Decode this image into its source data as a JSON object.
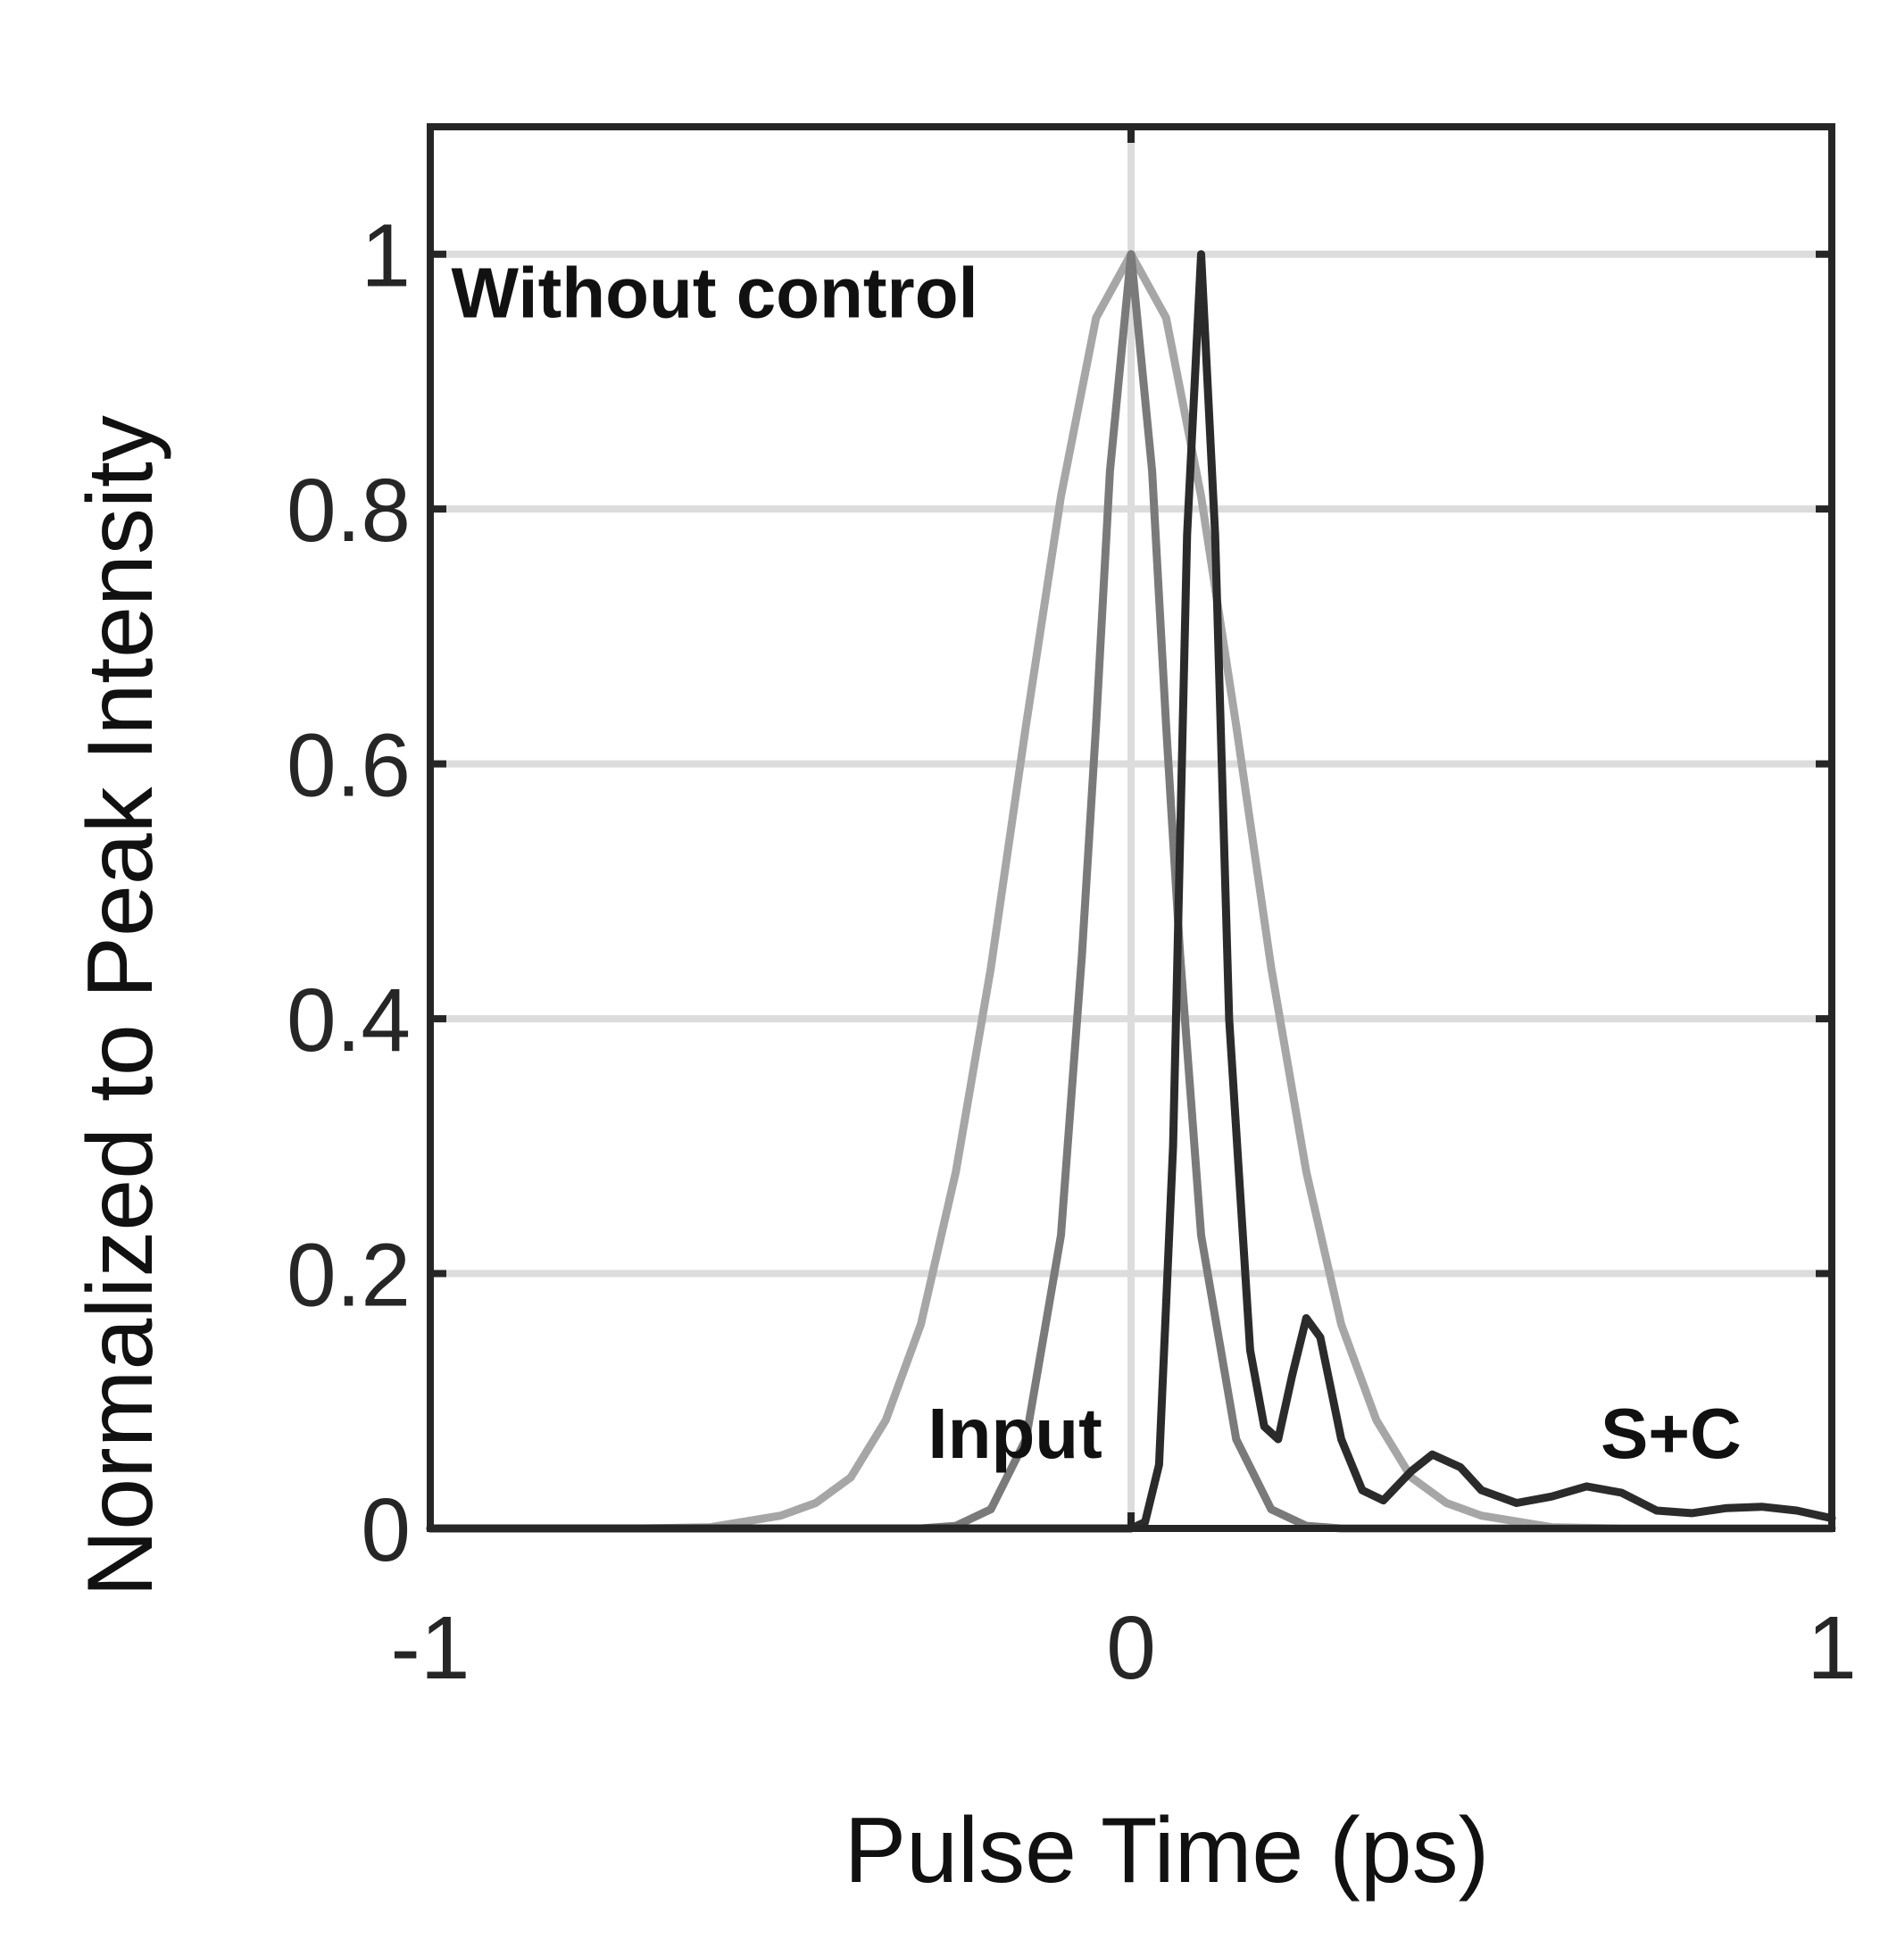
{
  "chart_data": {
    "type": "line",
    "title": "",
    "xlabel": "Pulse Time (ps)",
    "ylabel": "Normalized to Peak Intensity",
    "xlim": [
      -1,
      1
    ],
    "ylim": [
      0,
      1.1
    ],
    "grid": true,
    "xticks": [
      -1,
      0,
      1
    ],
    "xtick_labels": [
      "-1",
      "0",
      "1"
    ],
    "yticks": [
      0,
      0.2,
      0.4,
      0.6,
      0.8,
      1
    ],
    "ytick_labels": [
      "0",
      "0.2",
      "0.4",
      "0.6",
      "0.8",
      "1"
    ],
    "series": [
      {
        "name": "Without control",
        "color": "#a6a6a6",
        "points": [
          [
            -1,
            0
          ],
          [
            -0.7,
            0.0
          ],
          [
            -0.6,
            0.001
          ],
          [
            -0.5,
            0.01
          ],
          [
            -0.45,
            0.02
          ],
          [
            -0.4,
            0.04
          ],
          [
            -0.35,
            0.085
          ],
          [
            -0.3,
            0.16
          ],
          [
            -0.25,
            0.28
          ],
          [
            -0.2,
            0.44
          ],
          [
            -0.15,
            0.63
          ],
          [
            -0.1,
            0.81
          ],
          [
            -0.05,
            0.95
          ],
          [
            0,
            1.0
          ],
          [
            0.05,
            0.95
          ],
          [
            0.1,
            0.81
          ],
          [
            0.15,
            0.63
          ],
          [
            0.2,
            0.44
          ],
          [
            0.25,
            0.28
          ],
          [
            0.3,
            0.16
          ],
          [
            0.35,
            0.085
          ],
          [
            0.4,
            0.04
          ],
          [
            0.45,
            0.02
          ],
          [
            0.5,
            0.01
          ],
          [
            0.6,
            0.001
          ],
          [
            0.7,
            0.0
          ],
          [
            1,
            0
          ]
        ]
      },
      {
        "name": "Input",
        "color": "#7a7a7a",
        "points": [
          [
            -1,
            0
          ],
          [
            -0.3,
            0.0
          ],
          [
            -0.25,
            0.002
          ],
          [
            -0.2,
            0.015
          ],
          [
            -0.15,
            0.07
          ],
          [
            -0.1,
            0.23
          ],
          [
            -0.07,
            0.45
          ],
          [
            -0.05,
            0.63
          ],
          [
            -0.03,
            0.83
          ],
          [
            0,
            1.0
          ],
          [
            0.03,
            0.83
          ],
          [
            0.05,
            0.63
          ],
          [
            0.07,
            0.45
          ],
          [
            0.1,
            0.23
          ],
          [
            0.15,
            0.07
          ],
          [
            0.2,
            0.015
          ],
          [
            0.25,
            0.002
          ],
          [
            0.3,
            0.0
          ],
          [
            1,
            0
          ]
        ]
      },
      {
        "name": "S+C",
        "color": "#2b2b2b",
        "points": [
          [
            -1,
            0
          ],
          [
            0,
            0
          ],
          [
            0.02,
            0.005
          ],
          [
            0.04,
            0.05
          ],
          [
            0.06,
            0.3
          ],
          [
            0.08,
            0.78
          ],
          [
            0.1,
            1.0
          ],
          [
            0.12,
            0.78
          ],
          [
            0.14,
            0.4
          ],
          [
            0.17,
            0.14
          ],
          [
            0.19,
            0.08
          ],
          [
            0.21,
            0.07
          ],
          [
            0.23,
            0.12
          ],
          [
            0.25,
            0.165
          ],
          [
            0.27,
            0.15
          ],
          [
            0.3,
            0.07
          ],
          [
            0.33,
            0.03
          ],
          [
            0.36,
            0.022
          ],
          [
            0.4,
            0.045
          ],
          [
            0.43,
            0.058
          ],
          [
            0.47,
            0.048
          ],
          [
            0.5,
            0.03
          ],
          [
            0.55,
            0.02
          ],
          [
            0.6,
            0.025
          ],
          [
            0.65,
            0.033
          ],
          [
            0.7,
            0.028
          ],
          [
            0.75,
            0.014
          ],
          [
            0.8,
            0.012
          ],
          [
            0.85,
            0.016
          ],
          [
            0.9,
            0.017
          ],
          [
            0.95,
            0.014
          ],
          [
            1,
            0.008
          ]
        ]
      }
    ],
    "annotations": [
      {
        "text": "Without control",
        "x": -0.97,
        "y": 0.97
      },
      {
        "text": "Input",
        "x": -0.29,
        "y": 0.075
      },
      {
        "text": "S+C",
        "x": 0.67,
        "y": 0.075
      }
    ]
  }
}
